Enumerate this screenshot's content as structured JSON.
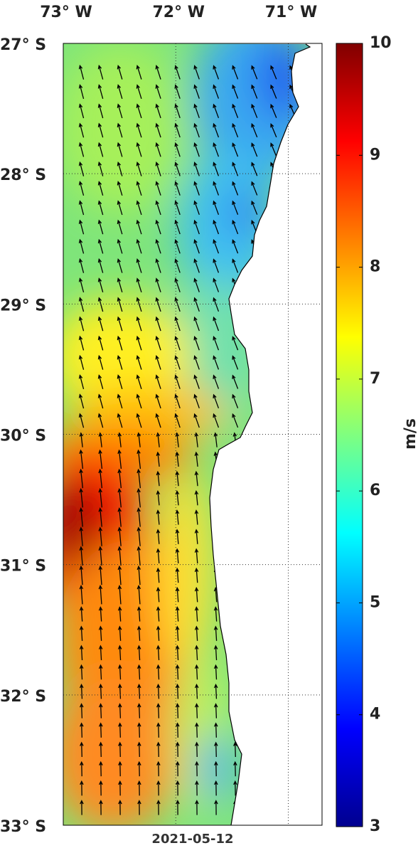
{
  "map": {
    "lon_range": [
      -73.0,
      -70.7
    ],
    "lat_range": [
      -27,
      -33
    ],
    "lon_ticks": [
      {
        "value": -73,
        "label": "73° W"
      },
      {
        "value": -72,
        "label": "72° W"
      },
      {
        "value": -71,
        "label": "71° W"
      }
    ],
    "lat_ticks": [
      {
        "value": -27,
        "label": "27° S"
      },
      {
        "value": -28,
        "label": "28° S"
      },
      {
        "value": -29,
        "label": "29° S"
      },
      {
        "value": -30,
        "label": "30° S"
      },
      {
        "value": -31,
        "label": "31° S"
      },
      {
        "value": -32,
        "label": "32° S"
      },
      {
        "value": -33,
        "label": "33° S"
      }
    ],
    "date": "2021-05-12"
  },
  "colorbar": {
    "range": [
      3,
      10
    ],
    "ticks": [
      3,
      4,
      5,
      6,
      7,
      8,
      9,
      10
    ],
    "label": "m/s"
  }
}
